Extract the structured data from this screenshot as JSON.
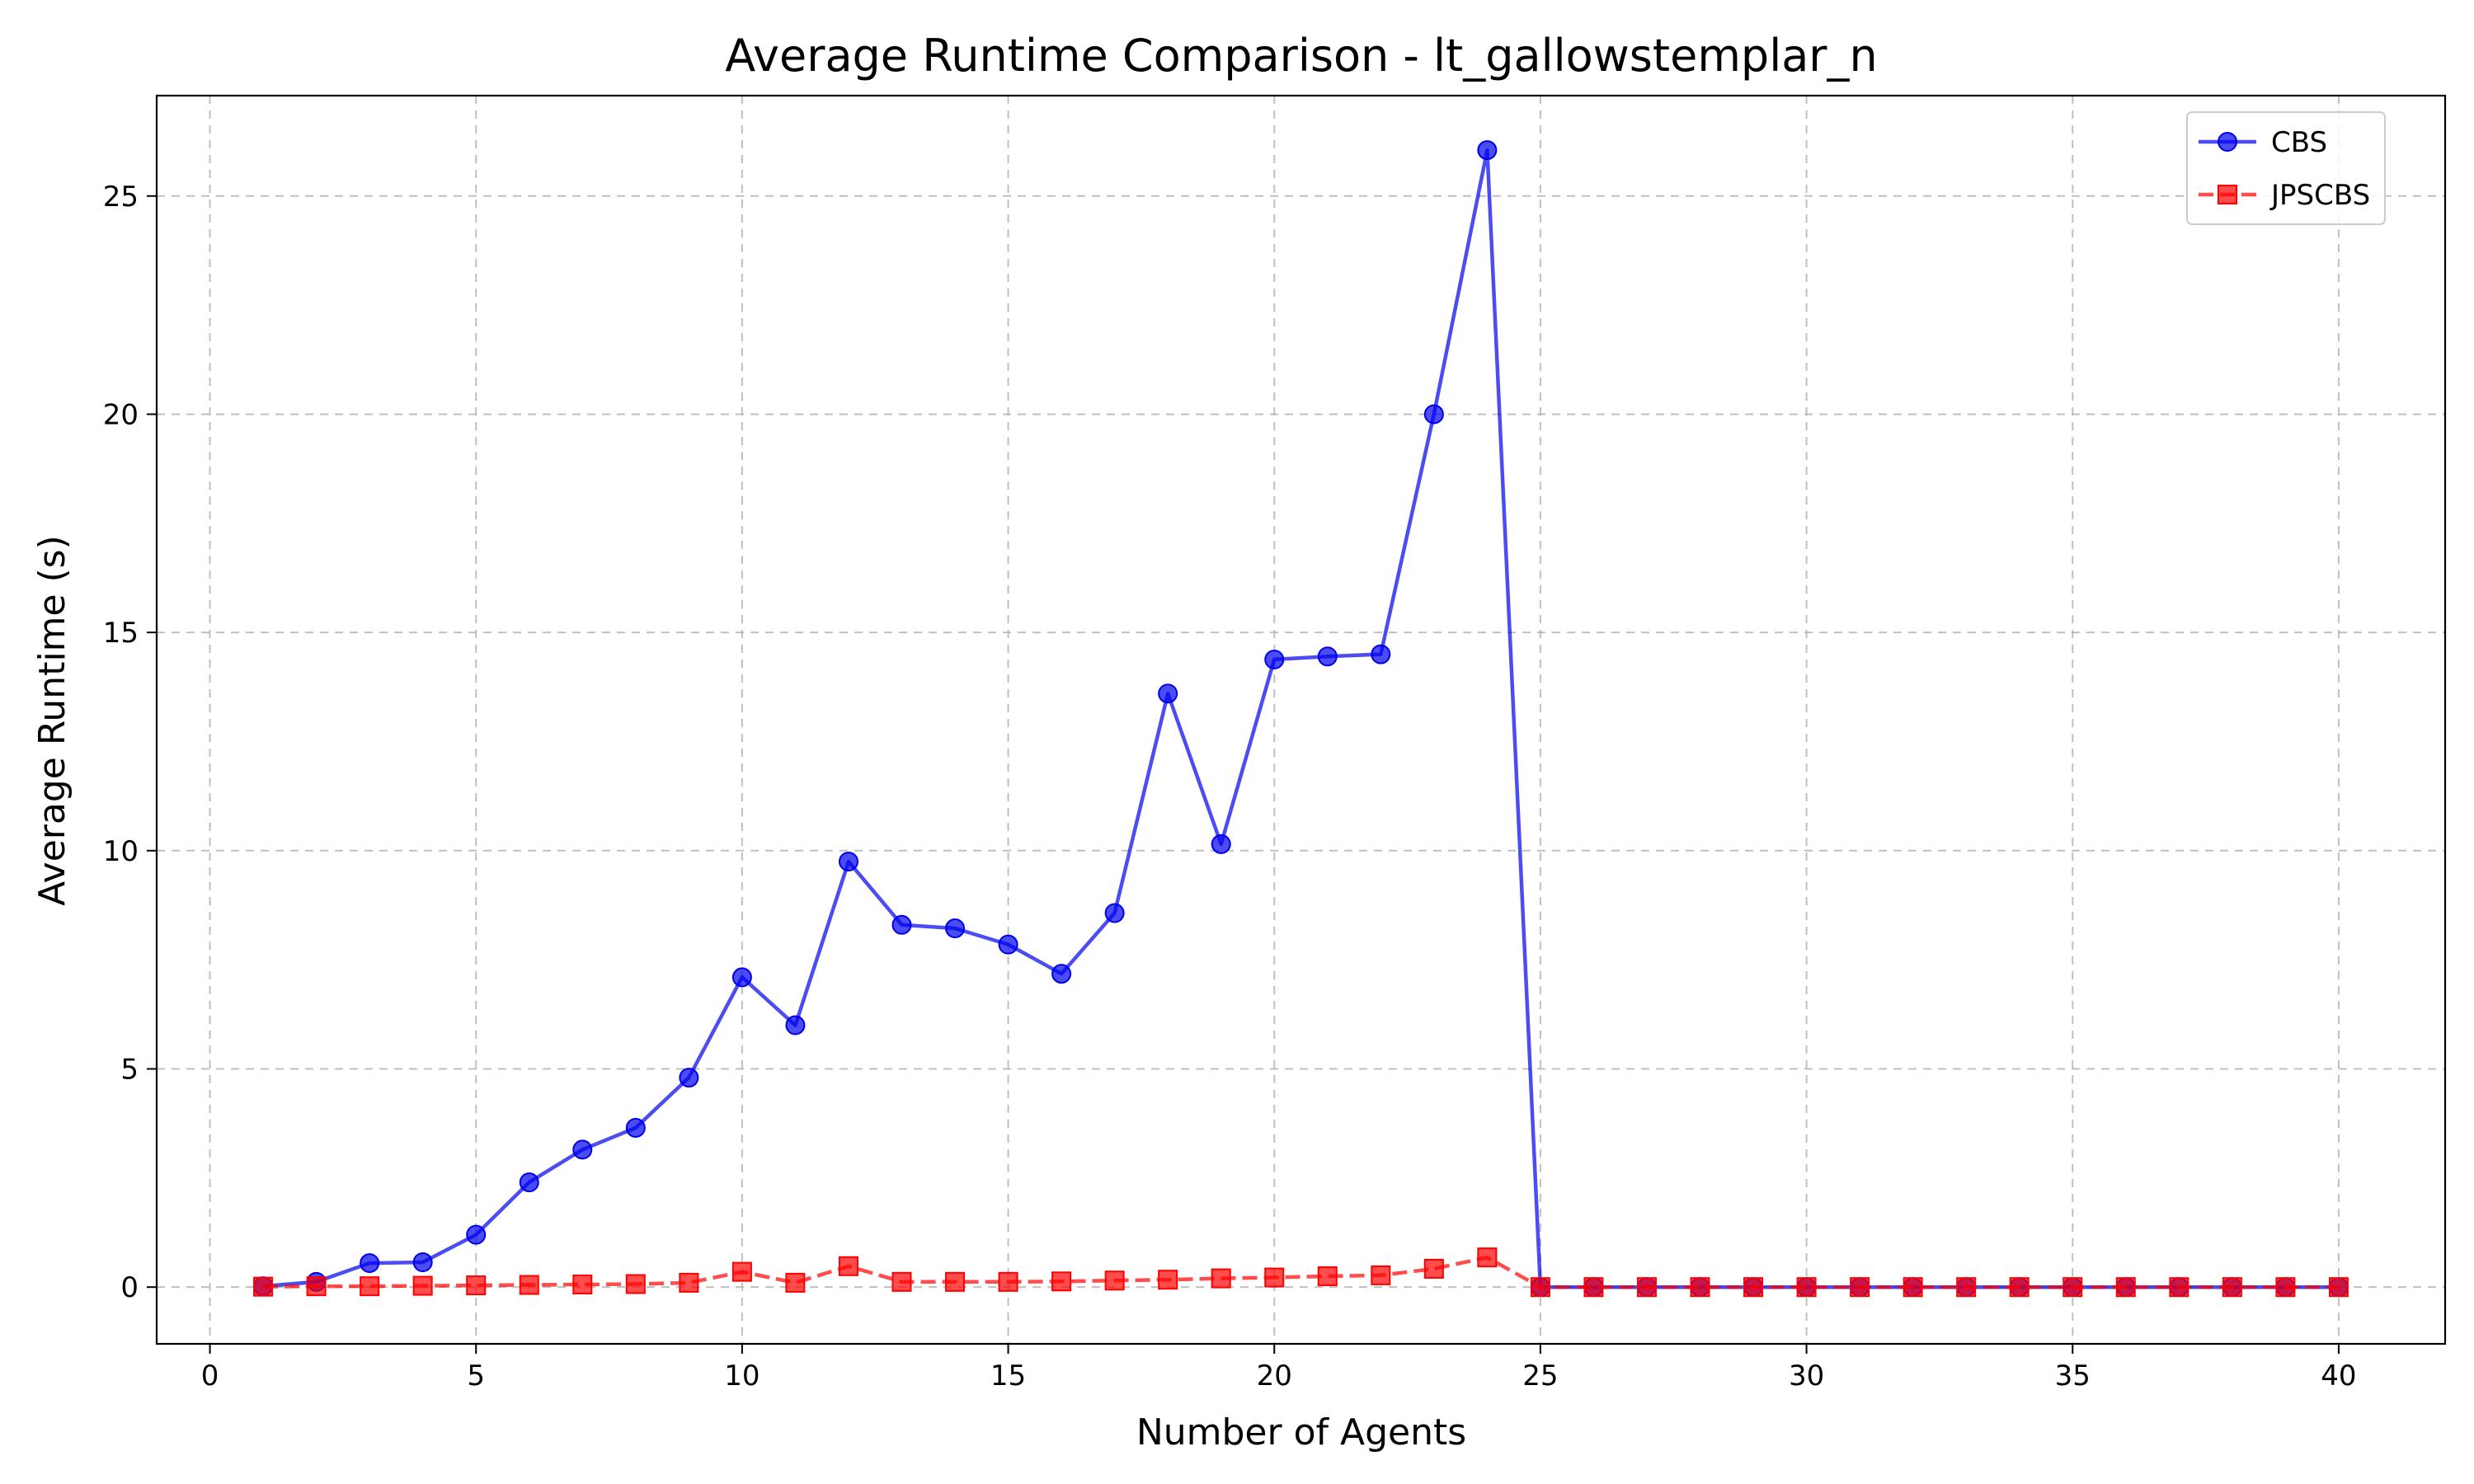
{
  "chart_data": {
    "type": "line",
    "title": "Average Runtime Comparison - lt_gallowstemplar_n",
    "xlabel": "Number of Agents",
    "ylabel": "Average Runtime (s)",
    "xlim": [
      -1.0,
      42.0
    ],
    "ylim": [
      -1.3,
      27.3
    ],
    "xticks": [
      0,
      5,
      10,
      15,
      20,
      25,
      30,
      35,
      40
    ],
    "yticks": [
      0,
      5,
      10,
      15,
      20,
      25
    ],
    "grid": true,
    "legend_position": "top-right",
    "x": [
      1,
      2,
      3,
      4,
      5,
      6,
      7,
      8,
      9,
      10,
      11,
      12,
      13,
      14,
      15,
      16,
      17,
      18,
      19,
      20,
      21,
      22,
      23,
      24,
      25,
      26,
      27,
      28,
      29,
      30,
      31,
      32,
      33,
      34,
      35,
      36,
      37,
      38,
      39,
      40
    ],
    "series": [
      {
        "name": "CBS",
        "color": "#0000ee",
        "marker": "circle",
        "line_style": "solid",
        "values": [
          0.02,
          0.12,
          0.55,
          0.57,
          1.2,
          2.4,
          3.15,
          3.65,
          4.8,
          7.1,
          6.0,
          9.75,
          8.3,
          8.22,
          7.85,
          7.18,
          8.57,
          13.6,
          10.15,
          14.38,
          14.45,
          14.5,
          20.0,
          26.05,
          0,
          0,
          0,
          0,
          0,
          0,
          0,
          0,
          0,
          0,
          0,
          0,
          0,
          0,
          0,
          0
        ]
      },
      {
        "name": "JPSCBS",
        "color": "#ff0000",
        "marker": "square",
        "line_style": "dashed",
        "values": [
          0.01,
          0.02,
          0.02,
          0.03,
          0.04,
          0.05,
          0.06,
          0.07,
          0.1,
          0.35,
          0.1,
          0.48,
          0.12,
          0.12,
          0.12,
          0.13,
          0.15,
          0.17,
          0.2,
          0.22,
          0.25,
          0.27,
          0.42,
          0.68,
          0,
          0,
          0,
          0,
          0,
          0,
          0,
          0,
          0,
          0,
          0,
          0,
          0,
          0,
          0,
          0
        ]
      }
    ]
  }
}
